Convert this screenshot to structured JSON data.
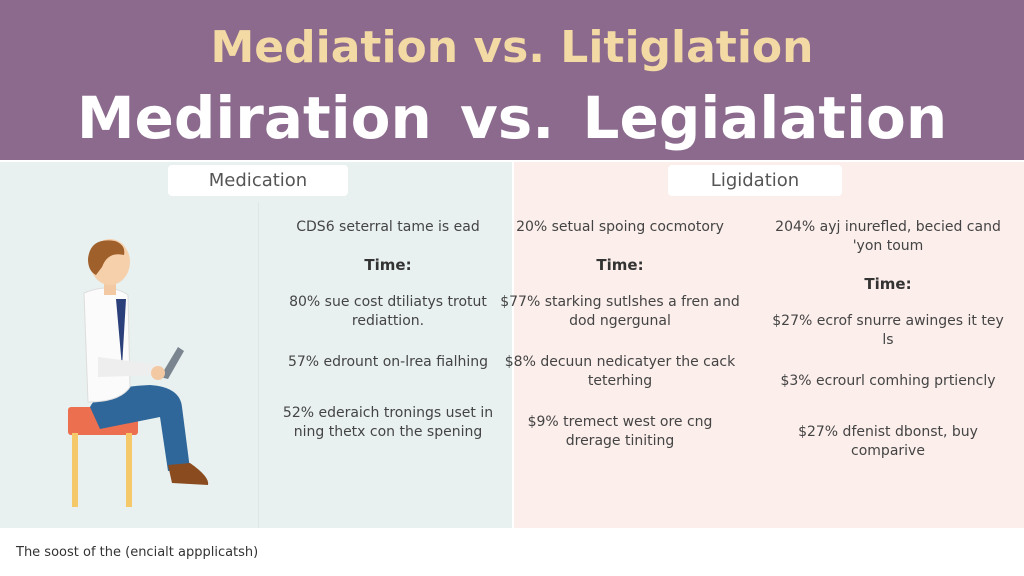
{
  "title": {
    "line1": "Mediation vs. Litiglation",
    "line2": "Mediration  vs.  Legialation"
  },
  "tabs": {
    "left": "Medication",
    "right": "Ligidation"
  },
  "columns": [
    {
      "intro": "CDS6 seterral tame is ead",
      "time": "Time:",
      "stats": [
        "80% sue cost dtiliatys trotut rediattion.",
        "57% edrount on-lrea fialhing",
        "52% ederaich tronings uset in ning thetx con the spening"
      ]
    },
    {
      "intro": "20% setual spoing cocmotory",
      "time": "Time:",
      "stats": [
        "$77% starking sutlshes a fren and dod ngergunal",
        "$8% decuun nedicatyer the cack teterhing",
        "$9% tremect west ore cng drerage tiniting"
      ]
    },
    {
      "intro": "204% ayj inurefled, becied cand 'yon toum",
      "time": "Time:",
      "stats": [
        "$27% ecrof snurre awinges it tey ls",
        "$3% ecrourl comhing prtiencly",
        "$27% dfenist dbonst, buy comparive"
      ]
    }
  ],
  "footer": "The soost of the (encialt appplicatsh)",
  "colors": {
    "header": "#8b6a8e",
    "title_accent": "#f3d9a3",
    "left_panel": "#e8f1f0",
    "right_panel": "#fbeeeb"
  }
}
